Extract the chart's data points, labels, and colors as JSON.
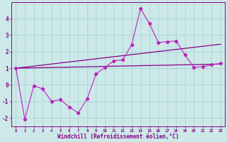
{
  "xlabel": "Windchill (Refroidissement éolien,°C)",
  "bg_color": "#cce8e8",
  "grid_color": "#aad4d4",
  "line_color": "#880088",
  "line_color2": "#bb22bb",
  "x_data": [
    0,
    1,
    2,
    3,
    4,
    5,
    6,
    7,
    8,
    9,
    10,
    11,
    12,
    13,
    14,
    15,
    16,
    17,
    18,
    19,
    20,
    21,
    22,
    23
  ],
  "y_main": [
    1.0,
    -2.1,
    -0.05,
    -0.25,
    -1.0,
    -0.9,
    -1.35,
    -1.7,
    -0.85,
    0.65,
    1.05,
    1.45,
    1.5,
    2.4,
    4.6,
    3.7,
    2.55,
    2.6,
    2.65,
    1.8,
    1.05,
    1.1,
    1.2,
    1.3
  ],
  "reg_upper_start": 1.0,
  "reg_upper_end": 2.45,
  "reg_lower_start": 1.0,
  "reg_lower_end": 1.25,
  "ylim": [
    -2.5,
    5.0
  ],
  "xlim": [
    -0.5,
    23.5
  ],
  "yticks": [
    -2,
    -1,
    0,
    1,
    2,
    3,
    4
  ],
  "xticks": [
    0,
    1,
    2,
    3,
    4,
    5,
    6,
    7,
    8,
    9,
    10,
    11,
    12,
    13,
    14,
    15,
    16,
    17,
    18,
    19,
    20,
    21,
    22,
    23
  ]
}
